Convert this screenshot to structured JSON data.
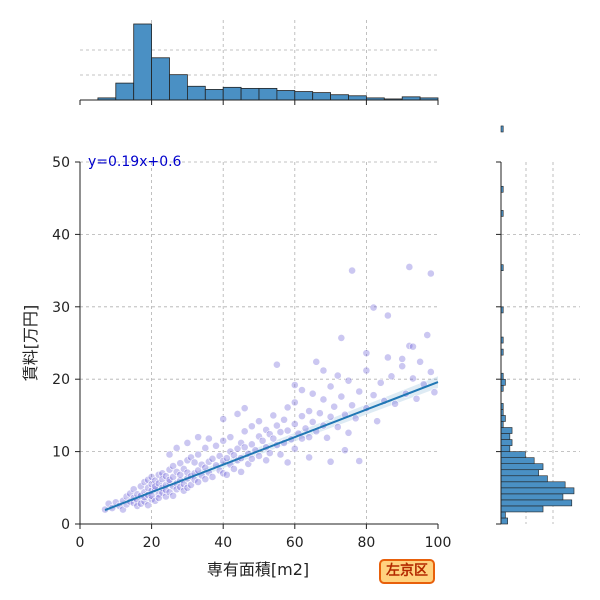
{
  "chart_data": {
    "type": "scatter",
    "xlabel": "専有面積[m2]",
    "ylabel": "賃料[万円]",
    "xlim": [
      0,
      100
    ],
    "ylim": [
      0,
      50
    ],
    "xticks": [
      0,
      20,
      40,
      60,
      80,
      100
    ],
    "yticks": [
      0,
      10,
      20,
      30,
      40,
      50
    ],
    "grid": true,
    "regression": {
      "label": "y=0.19x+0.6",
      "slope": 0.19,
      "intercept": 0.6,
      "x_range": [
        7,
        100
      ]
    },
    "badge": "左京区",
    "points": [
      [
        7,
        2.0
      ],
      [
        8,
        2.8
      ],
      [
        9,
        2.2
      ],
      [
        10,
        3.0
      ],
      [
        11,
        2.5
      ],
      [
        12,
        3.2
      ],
      [
        12,
        2.0
      ],
      [
        13,
        3.8
      ],
      [
        13,
        2.7
      ],
      [
        14,
        3.1
      ],
      [
        14,
        4.2
      ],
      [
        15,
        2.9
      ],
      [
        15,
        3.6
      ],
      [
        15,
        4.8
      ],
      [
        16,
        3.3
      ],
      [
        16,
        2.5
      ],
      [
        16,
        4.1
      ],
      [
        17,
        3.9
      ],
      [
        17,
        5.2
      ],
      [
        17,
        2.8
      ],
      [
        18,
        4.4
      ],
      [
        18,
        3.1
      ],
      [
        18,
        5.8
      ],
      [
        18,
        3.7
      ],
      [
        19,
        4.0
      ],
      [
        19,
        5.0
      ],
      [
        19,
        2.6
      ],
      [
        19,
        6.1
      ],
      [
        20,
        4.6
      ],
      [
        20,
        3.4
      ],
      [
        20,
        5.5
      ],
      [
        20,
        6.5
      ],
      [
        20,
        3.9
      ],
      [
        21,
        4.8
      ],
      [
        21,
        3.2
      ],
      [
        21,
        6.0
      ],
      [
        21,
        5.2
      ],
      [
        22,
        4.1
      ],
      [
        22,
        6.8
      ],
      [
        22,
        5.6
      ],
      [
        22,
        3.6
      ],
      [
        23,
        5.0
      ],
      [
        23,
        4.3
      ],
      [
        23,
        7.0
      ],
      [
        23,
        6.2
      ],
      [
        24,
        5.4
      ],
      [
        24,
        3.8
      ],
      [
        24,
        6.6
      ],
      [
        24,
        4.7
      ],
      [
        25,
        5.8
      ],
      [
        25,
        7.5
      ],
      [
        25,
        4.4
      ],
      [
        25,
        6.1
      ],
      [
        26,
        5.2
      ],
      [
        26,
        8.0
      ],
      [
        26,
        6.5
      ],
      [
        26,
        3.9
      ],
      [
        27,
        5.6
      ],
      [
        27,
        7.2
      ],
      [
        27,
        4.8
      ],
      [
        28,
        6.0
      ],
      [
        28,
        8.4
      ],
      [
        28,
        5.1
      ],
      [
        28,
        6.8
      ],
      [
        29,
        5.5
      ],
      [
        29,
        7.6
      ],
      [
        29,
        4.6
      ],
      [
        30,
        6.3
      ],
      [
        30,
        8.8
      ],
      [
        30,
        5.0
      ],
      [
        30,
        7.1
      ],
      [
        31,
        6.6
      ],
      [
        31,
        9.2
      ],
      [
        31,
        5.4
      ],
      [
        32,
        7.0
      ],
      [
        32,
        6.1
      ],
      [
        32,
        8.5
      ],
      [
        33,
        7.4
      ],
      [
        33,
        5.8
      ],
      [
        33,
        9.6
      ],
      [
        34,
        6.7
      ],
      [
        34,
        8.2
      ],
      [
        35,
        7.8
      ],
      [
        35,
        10.5
      ],
      [
        35,
        6.2
      ],
      [
        36,
        8.6
      ],
      [
        36,
        7.1
      ],
      [
        37,
        9.0
      ],
      [
        37,
        6.5
      ],
      [
        38,
        8.1
      ],
      [
        38,
        10.8
      ],
      [
        39,
        7.4
      ],
      [
        39,
        9.4
      ],
      [
        40,
        8.7
      ],
      [
        40,
        11.5
      ],
      [
        40,
        7.0
      ],
      [
        41,
        9.1
      ],
      [
        41,
        6.8
      ],
      [
        42,
        10.0
      ],
      [
        42,
        8.2
      ],
      [
        42,
        12.0
      ],
      [
        43,
        9.5
      ],
      [
        43,
        7.6
      ],
      [
        44,
        10.4
      ],
      [
        44,
        8.8
      ],
      [
        45,
        11.2
      ],
      [
        45,
        9.1
      ],
      [
        45,
        7.2
      ],
      [
        46,
        10.6
      ],
      [
        46,
        12.8
      ],
      [
        47,
        9.7
      ],
      [
        47,
        8.3
      ],
      [
        48,
        11.0
      ],
      [
        48,
        13.5
      ],
      [
        48,
        9.0
      ],
      [
        49,
        10.2
      ],
      [
        50,
        12.1
      ],
      [
        50,
        9.4
      ],
      [
        50,
        14.2
      ],
      [
        51,
        11.5
      ],
      [
        52,
        10.6
      ],
      [
        52,
        13.0
      ],
      [
        53,
        9.8
      ],
      [
        53,
        12.4
      ],
      [
        54,
        11.8
      ],
      [
        54,
        15.0
      ],
      [
        55,
        10.9
      ],
      [
        55,
        13.6
      ],
      [
        56,
        12.7
      ],
      [
        56,
        9.6
      ],
      [
        57,
        14.4
      ],
      [
        57,
        11.2
      ],
      [
        58,
        12.9
      ],
      [
        58,
        16.1
      ],
      [
        59,
        11.7
      ],
      [
        60,
        13.8
      ],
      [
        60,
        10.4
      ],
      [
        60,
        16.8
      ],
      [
        61,
        12.5
      ],
      [
        62,
        14.9
      ],
      [
        62,
        11.8
      ],
      [
        63,
        13.2
      ],
      [
        64,
        15.6
      ],
      [
        64,
        12.0
      ],
      [
        65,
        14.1
      ],
      [
        65,
        18.0
      ],
      [
        66,
        12.8
      ],
      [
        67,
        15.3
      ],
      [
        68,
        13.6
      ],
      [
        68,
        17.2
      ],
      [
        69,
        11.9
      ],
      [
        70,
        14.8
      ],
      [
        70,
        19.0
      ],
      [
        71,
        16.2
      ],
      [
        72,
        13.4
      ],
      [
        73,
        17.6
      ],
      [
        74,
        15.1
      ],
      [
        75,
        12.6
      ],
      [
        75,
        19.8
      ],
      [
        76,
        16.4
      ],
      [
        77,
        14.6
      ],
      [
        78,
        18.3
      ],
      [
        80,
        16.0
      ],
      [
        80,
        21.2
      ],
      [
        82,
        17.8
      ],
      [
        83,
        14.2
      ],
      [
        84,
        19.5
      ],
      [
        85,
        17.0
      ],
      [
        86,
        23.0
      ],
      [
        87,
        20.4
      ],
      [
        88,
        16.6
      ],
      [
        90,
        21.8
      ],
      [
        91,
        18.0
      ],
      [
        92,
        24.6
      ],
      [
        93,
        20.1
      ],
      [
        94,
        17.3
      ],
      [
        95,
        22.4
      ],
      [
        96,
        19.3
      ],
      [
        98,
        21.0
      ],
      [
        99,
        18.2
      ],
      [
        55,
        22.0
      ],
      [
        62,
        18.5
      ],
      [
        68,
        21.2
      ],
      [
        72,
        20.5
      ],
      [
        46,
        16.0
      ],
      [
        33,
        12.0
      ],
      [
        27,
        10.5
      ],
      [
        40,
        14.5
      ],
      [
        52,
        8.8
      ],
      [
        58,
        8.5
      ],
      [
        64,
        9.2
      ],
      [
        70,
        8.6
      ],
      [
        74,
        10.2
      ],
      [
        78,
        8.7
      ],
      [
        30,
        11.2
      ],
      [
        25,
        9.6
      ],
      [
        36,
        11.8
      ],
      [
        44,
        15.2
      ],
      [
        60,
        19.2
      ],
      [
        66,
        22.4
      ],
      [
        76,
        35.0
      ],
      [
        92,
        35.5
      ],
      [
        98,
        34.6
      ],
      [
        82,
        29.9
      ],
      [
        86,
        28.8
      ],
      [
        93,
        24.5
      ],
      [
        97,
        26.1
      ],
      [
        90,
        22.8
      ],
      [
        80,
        23.6
      ],
      [
        73,
        25.7
      ]
    ],
    "hist_x": {
      "bin_width": 5,
      "bin_start": 5,
      "counts": [
        2,
        16,
        72,
        40,
        24,
        13,
        10,
        12,
        11,
        11,
        9,
        8,
        7,
        5,
        4,
        2,
        1,
        3,
        2
      ]
    },
    "hist_y": {
      "bin_width": 0.833,
      "bin_start": 0,
      "counts": [
        3,
        2,
        19,
        32,
        28,
        33,
        29,
        21,
        17,
        19,
        15,
        11,
        4,
        5,
        4,
        5,
        1,
        2,
        1,
        1,
        0,
        0,
        1,
        2,
        1,
        0,
        0,
        0,
        1,
        0,
        1,
        0,
        0,
        0,
        0,
        1,
        0,
        0,
        0,
        0,
        0,
        0,
        1,
        0,
        0,
        0,
        0,
        0,
        0,
        0,
        0,
        1,
        0,
        0,
        0,
        1,
        0,
        0,
        0,
        0,
        0,
        0,
        0,
        0,
        0,
        1
      ]
    },
    "colors": {
      "point_fill": "#6a5fd6",
      "point_edge": "#ffffff",
      "regression_line": "#1f77b4",
      "hist_fill": "#4a90c4",
      "hist_edge": "#222222",
      "grid": "#b0b0b0",
      "equation": "#0000cc"
    }
  }
}
